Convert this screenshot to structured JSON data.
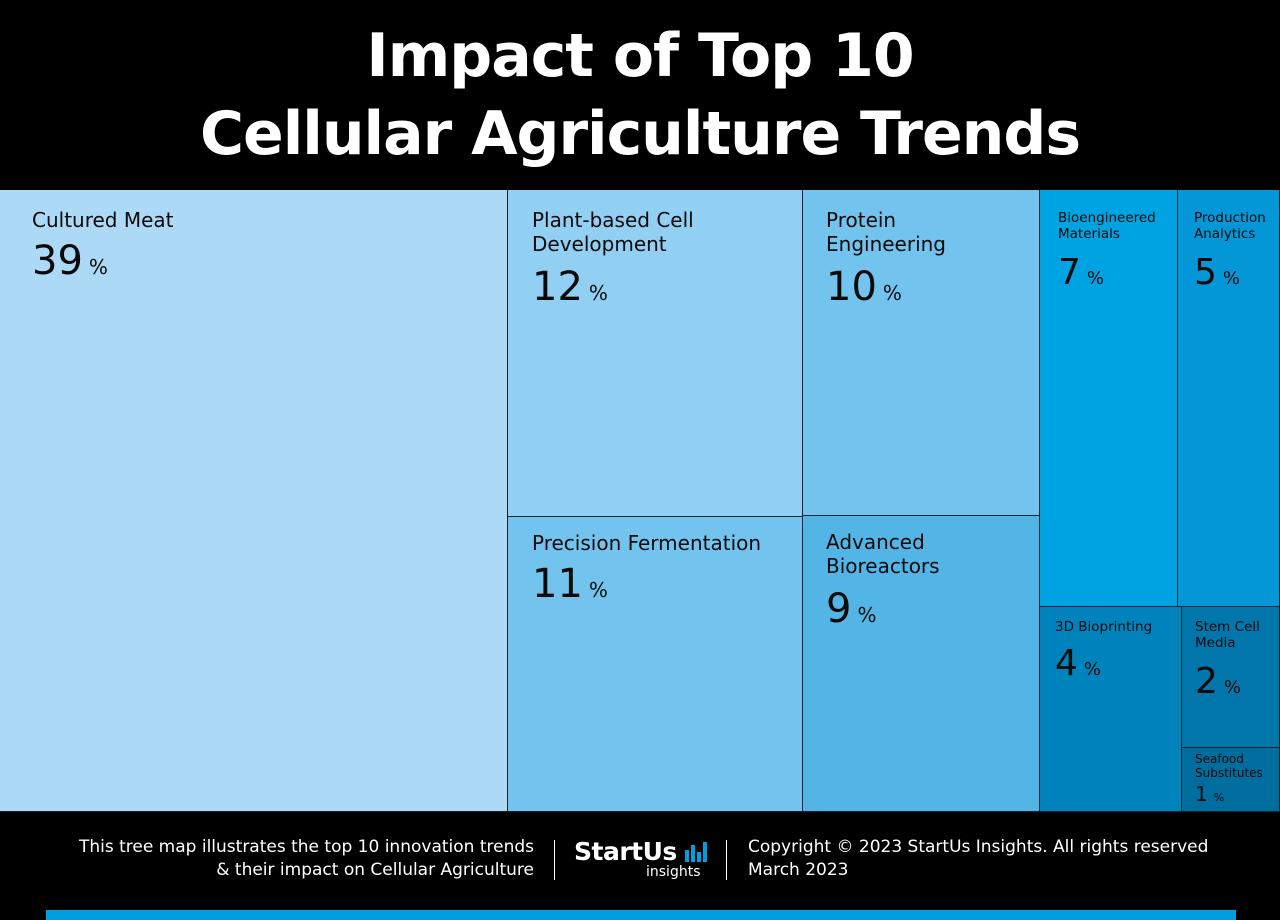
{
  "header": {
    "title_line1": "Impact of Top 10",
    "title_line2": "Cellular Agriculture Trends"
  },
  "chart_data": {
    "type": "treemap",
    "title": "Impact of Top 10 Cellular Agriculture Trends",
    "unit": "%",
    "items": [
      {
        "label": "Cultured Meat",
        "value": 39,
        "color": "#acd9f6"
      },
      {
        "label": "Plant-based Cell Development",
        "value": 12,
        "color": "#91d0f2"
      },
      {
        "label": "Precision Fermentation",
        "value": 11,
        "color": "#72c4ee"
      },
      {
        "label": "Protein Engineering",
        "value": 10,
        "color": "#72c4ee"
      },
      {
        "label": "Advanced Bioreactors",
        "value": 9,
        "color": "#53b5e6"
      },
      {
        "label": "Bioengineered Materials",
        "value": 7,
        "color": "#00a3e2"
      },
      {
        "label": "Production Analytics",
        "value": 5,
        "color": "#0497d7"
      },
      {
        "label": "3D Bioprinting",
        "value": 4,
        "color": "#0083bd"
      },
      {
        "label": "Stem Cell Media",
        "value": 2,
        "color": "#0076ab"
      },
      {
        "label": "Seafood Substitutes",
        "value": 1,
        "color": "#006d9f"
      }
    ]
  },
  "footer": {
    "description_line1": "This tree map illustrates the top 10 innovation trends",
    "description_line2": "& their impact on Cellular Agriculture",
    "logo_main": "StartUs",
    "logo_sub": "insights",
    "copyright": "Copyright © 2023 StartUs Insights. All rights reserved",
    "date": "March 2023"
  },
  "colors": {
    "background": "#000000",
    "accent_bar": "#009fdf"
  }
}
